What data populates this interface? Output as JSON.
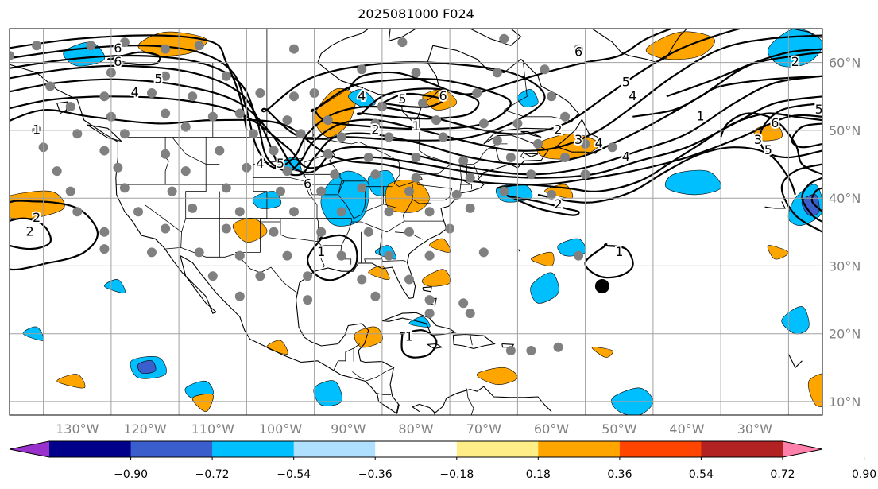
{
  "title": "2025081000 F024",
  "map": {
    "lon_range": [
      -140,
      -20
    ],
    "lat_range": [
      8,
      65
    ],
    "lon_ticks": [
      {
        "value": -130,
        "label": "130°W"
      },
      {
        "value": -120,
        "label": "120°W"
      },
      {
        "value": -110,
        "label": "110°W"
      },
      {
        "value": -100,
        "label": "100°W"
      },
      {
        "value": -90,
        "label": "90°W"
      },
      {
        "value": -80,
        "label": "80°W"
      },
      {
        "value": -70,
        "label": "70°W"
      },
      {
        "value": -60,
        "label": "60°W"
      },
      {
        "value": -50,
        "label": "50°W"
      },
      {
        "value": -40,
        "label": "40°W"
      },
      {
        "value": -30,
        "label": "30°W"
      }
    ],
    "lat_ticks": [
      {
        "value": 60,
        "label": "60°N"
      },
      {
        "value": 50,
        "label": "50°N"
      },
      {
        "value": 40,
        "label": "40°N"
      },
      {
        "value": 30,
        "label": "30°N"
      },
      {
        "value": 20,
        "label": "20°N"
      },
      {
        "value": 10,
        "label": "10°N"
      }
    ],
    "grid": true
  },
  "colorbar": {
    "colors": [
      "#9932cc",
      "#00008b",
      "#3a5fcd",
      "#00bfff",
      "#afe0ff",
      "#ffffff",
      "#ffee88",
      "#ffa500",
      "#ff4500",
      "#b22222",
      "#ff80ab"
    ],
    "labels": [
      "−0.90",
      "−0.72",
      "−0.54",
      "−0.36",
      "−0.18",
      "0.18",
      "0.36",
      "0.54",
      "0.72",
      "0.90"
    ]
  },
  "contour_labels": [
    "1",
    "2",
    "3",
    "4",
    "5",
    "6"
  ],
  "legend_colors": {
    "grid": "#a0a0a0",
    "stations": "#808080",
    "contours": "#000000"
  }
}
